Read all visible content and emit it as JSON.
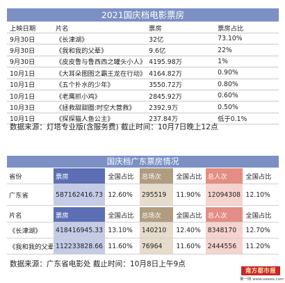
{
  "national": {
    "title": "2021国庆档电影票房",
    "headers": [
      "上映日期",
      "片名",
      "票房",
      "票房占比"
    ],
    "rows": [
      [
        "9月30日",
        "《长津湖》",
        "32亿",
        "73.10%"
      ],
      [
        "9月30日",
        "《我和我的父辈》",
        "9.6亿",
        "22%"
      ],
      [
        "9月30日",
        "《皮皮鲁与鲁西西之罐头小人》",
        "4195.98万",
        "1%"
      ],
      [
        "10月1日",
        "《大耳朵图图之霸王龙在行动》",
        "4164.82万",
        "0.90%"
      ],
      [
        "10月1日",
        "《五个扑水的少年》",
        "3550.72万",
        "0.80%"
      ],
      [
        "10月1日",
        "《老鹰抓小鸡》",
        "2845.92万",
        "0.60%"
      ],
      [
        "10月3日",
        "《拯救甜甜圈:时空大营救》",
        "2392.9万",
        "0.50%"
      ],
      [
        "10月1日",
        "《探探猫人鱼公主》",
        "237.84万",
        "低于0.1%"
      ]
    ],
    "source": "数据来源：灯塔专业版(含服务费)  截止时间：10月7日晚上12点"
  },
  "guangdong": {
    "title": "国庆档广东票房情况",
    "province_table": {
      "headers": [
        "省份",
        "票房",
        "全国占比",
        "总场次",
        "全国占比",
        "总人次",
        "全国占比"
      ],
      "row": [
        "广东省",
        "587162416.73",
        "12.60%",
        "295519",
        "11.90%",
        "12094308",
        "12.10%"
      ]
    },
    "film_table": {
      "headers": [
        "片名",
        "票房",
        "全国占比",
        "总场次",
        "全国占比",
        "总人次",
        "全国占比"
      ],
      "rows": [
        [
          "《长津湖》",
          "418416945.33",
          "13.10%",
          "140210",
          "12.40%",
          "8348170",
          "12.70%"
        ],
        [
          "《我和我的父辈》",
          "112233828.66",
          "11.60%",
          "76964",
          "11.60%",
          "2444556",
          "11.20%"
        ]
      ]
    },
    "source": "数据来源：广东省电影处  截止时间：10月8日上午9点"
  },
  "logo": {
    "text": "南方都市报",
    "url": "奥一网 www.oeeee.com"
  },
  "colors": {
    "title_bar": "#7c90c4",
    "box_office": "#5c6fb4",
    "box_office_light": "#c3cbe6",
    "screenings": "#b09c7f",
    "screenings_light": "#e5dccc",
    "admissions": "#e48d84",
    "admissions_light": "#f5d3ce",
    "logo": "#c8262d"
  }
}
